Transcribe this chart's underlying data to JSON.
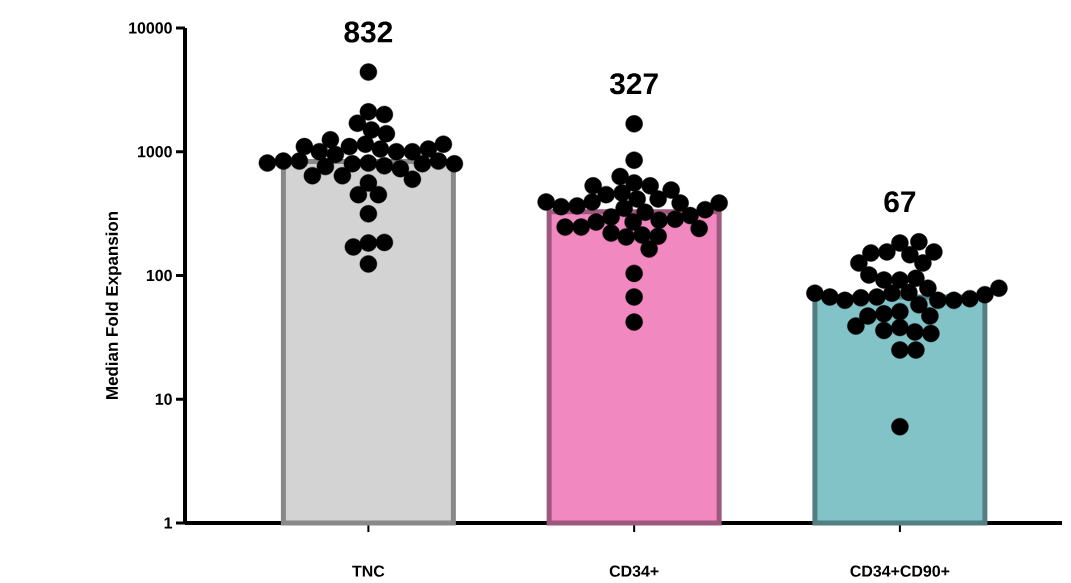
{
  "chart_data": {
    "type": "bar",
    "ylabel": "Median Fold Expansion",
    "categories": [
      "TNC",
      "CD34+",
      "CD34+CD90+"
    ],
    "values": [
      832,
      327,
      67
    ],
    "colors": [
      "#d3d3d3",
      "#f288c0",
      "#82c3c8"
    ],
    "annotations": [
      "832",
      "327",
      "67"
    ],
    "log": true,
    "grid": false,
    "ylim": [
      1,
      10000
    ],
    "yticks": [
      1,
      10,
      100,
      1000,
      10000
    ],
    "series": [
      {
        "type": "scatter",
        "color": "#000000",
        "marker": "circle",
        "x": [
          "TNC",
          "TNC",
          "TNC",
          "TNC",
          "TNC",
          "TNC",
          "TNC",
          "TNC",
          "TNC",
          "TNC",
          "TNC",
          "TNC",
          "TNC",
          "TNC",
          "TNC",
          "TNC",
          "TNC",
          "TNC",
          "TNC",
          "TNC",
          "TNC",
          "TNC",
          "TNC",
          "TNC",
          "TNC",
          "TNC",
          "TNC",
          "TNC",
          "TNC",
          "TNC",
          "TNC",
          "TNC",
          "TNC",
          "TNC",
          "TNC",
          "TNC",
          "TNC",
          "TNC",
          "TNC"
        ],
        "values": [
          4400,
          2100,
          2000,
          1700,
          1500,
          1400,
          1150,
          1100,
          1050,
          1000,
          950,
          1000,
          1000,
          1050,
          1100,
          1150,
          1250,
          810,
          800,
          770,
          730,
          840,
          840,
          840,
          760,
          800,
          800,
          810,
          640,
          640,
          560,
          600,
          450,
          450,
          315,
          183,
          185,
          170,
          124
        ]
      },
      {
        "type": "scatter",
        "color": "#000000",
        "marker": "circle",
        "x": [
          "CD34+",
          "CD34+",
          "CD34+",
          "CD34+",
          "CD34+",
          "CD34+",
          "CD34+",
          "CD34+",
          "CD34+",
          "CD34+",
          "CD34+",
          "CD34+",
          "CD34+",
          "CD34+",
          "CD34+",
          "CD34+",
          "CD34+",
          "CD34+",
          "CD34+",
          "CD34+",
          "CD34+",
          "CD34+",
          "CD34+",
          "CD34+",
          "CD34+",
          "CD34+",
          "CD34+",
          "CD34+",
          "CD34+",
          "CD34+",
          "CD34+",
          "CD34+",
          "CD34+",
          "CD34+",
          "CD34+",
          "CD34+",
          "CD34+"
        ],
        "values": [
          1680,
          855,
          560,
          530,
          465,
          415,
          415,
          450,
          490,
          530,
          630,
          393,
          385,
          365,
          350,
          325,
          297,
          280,
          270,
          270,
          285,
          305,
          340,
          360,
          385,
          393,
          246,
          240,
          212,
          205,
          208,
          220,
          246,
          164,
          104,
          67,
          42
        ]
      },
      {
        "type": "scatter",
        "color": "#000000",
        "marker": "circle",
        "x": [
          "CD34+CD90+",
          "CD34+CD90+",
          "CD34+CD90+",
          "CD34+CD90+",
          "CD34+CD90+",
          "CD34+CD90+",
          "CD34+CD90+",
          "CD34+CD90+",
          "CD34+CD90+",
          "CD34+CD90+",
          "CD34+CD90+",
          "CD34+CD90+",
          "CD34+CD90+",
          "CD34+CD90+",
          "CD34+CD90+",
          "CD34+CD90+",
          "CD34+CD90+",
          "CD34+CD90+",
          "CD34+CD90+",
          "CD34+CD90+",
          "CD34+CD90+",
          "CD34+CD90+",
          "CD34+CD90+",
          "CD34+CD90+",
          "CD34+CD90+",
          "CD34+CD90+",
          "CD34+CD90+",
          "CD34+CD90+",
          "CD34+CD90+",
          "CD34+CD90+",
          "CD34+CD90+",
          "CD34+CD90+",
          "CD34+CD90+",
          "CD34+CD90+",
          "CD34+CD90+",
          "CD34+CD90+",
          "CD34+CD90+",
          "CD34+CD90+"
        ],
        "values": [
          183,
          147,
          155,
          126,
          152,
          155,
          126,
          187,
          92,
          95,
          92,
          101,
          79,
          73,
          72,
          67,
          66,
          63,
          63,
          63,
          65,
          67,
          70,
          72,
          79,
          58,
          51,
          49,
          47,
          47,
          38,
          35,
          36,
          34,
          39,
          25,
          25,
          6
        ]
      }
    ]
  }
}
